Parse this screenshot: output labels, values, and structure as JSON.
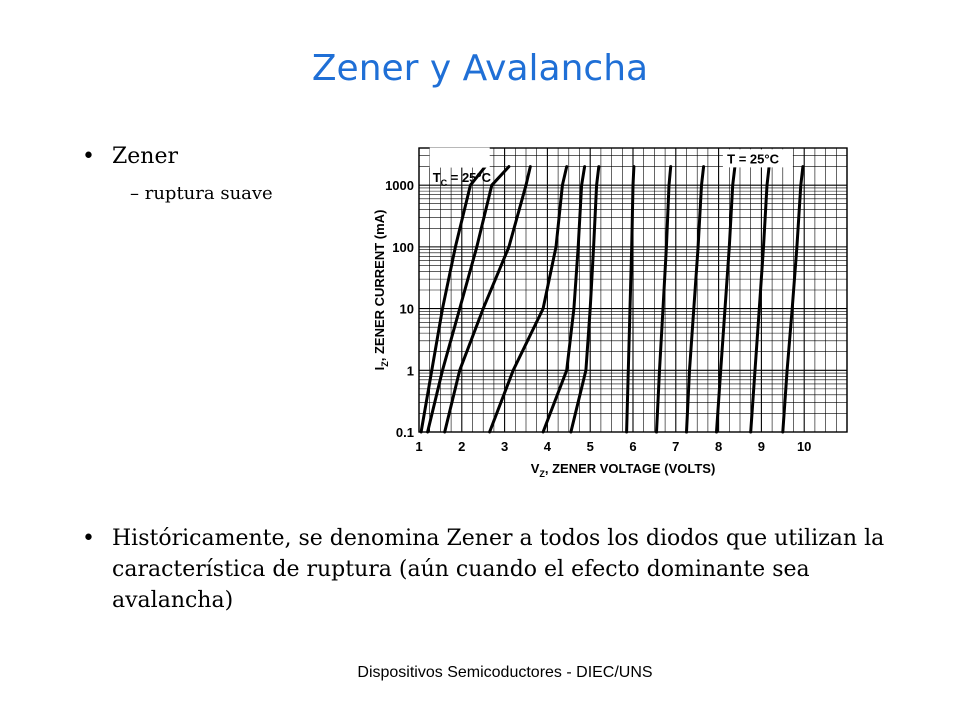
{
  "slide": {
    "title": "Zener y Avalancha",
    "bullet_char": "•",
    "bullet1": "Zener",
    "sub_bullet": "– ruptura suave",
    "bullet2": "Históricamente, se denomina Zener a todos los diodos que utilizan la característica de ruptura (aún cuando el efecto dominante sea avalancha)",
    "footer": "Dispositivos Semicoductores - DIEC/UNS"
  },
  "chart_data": {
    "type": "line",
    "x_label": "VZ, ZENER VOLTAGE (VOLTS)",
    "y_label": "IZ, ZENER CURRENT (mA)",
    "x_ticks": [
      "1",
      "2",
      "3",
      "4",
      "5",
      "6",
      "7",
      "8",
      "9",
      "10"
    ],
    "y_ticks": [
      "0.1",
      "1",
      "10",
      "100",
      "1000"
    ],
    "x_range": [
      1,
      11
    ],
    "y_scale": "log",
    "y_range": [
      0.1,
      4000
    ],
    "grid": true,
    "annotations": [
      "TC = 25°C",
      "T = 25°C"
    ],
    "series": [
      {
        "x": [
          1.05,
          1.3,
          1.55,
          1.85,
          2.2,
          2.55
        ],
        "y": [
          0.1,
          1,
          10,
          100,
          1000,
          2000
        ]
      },
      {
        "x": [
          1.2,
          1.55,
          1.95,
          2.35,
          2.7,
          3.1
        ],
        "y": [
          0.1,
          1,
          10,
          100,
          1000,
          2000
        ]
      },
      {
        "x": [
          1.6,
          1.95,
          2.5,
          3.1,
          3.5,
          3.6
        ],
        "y": [
          0.1,
          1,
          10,
          100,
          1000,
          2000
        ]
      },
      {
        "x": [
          2.65,
          3.2,
          3.9,
          4.2,
          4.35,
          4.45
        ],
        "y": [
          0.1,
          1,
          10,
          100,
          1000,
          2000
        ]
      },
      {
        "x": [
          3.9,
          4.45,
          4.62,
          4.72,
          4.8,
          4.87
        ],
        "y": [
          0.1,
          1,
          10,
          100,
          1000,
          2000
        ]
      },
      {
        "x": [
          4.55,
          4.9,
          5.0,
          5.08,
          5.15,
          5.2
        ],
        "y": [
          0.1,
          1,
          10,
          100,
          1000,
          2000
        ]
      },
      {
        "x": [
          5.85,
          5.89,
          5.93,
          5.97,
          6.0,
          6.02
        ],
        "y": [
          0.1,
          1,
          10,
          100,
          1000,
          2000
        ]
      },
      {
        "x": [
          6.55,
          6.62,
          6.7,
          6.78,
          6.84,
          6.88
        ],
        "y": [
          0.1,
          1,
          10,
          100,
          1000,
          2000
        ]
      },
      {
        "x": [
          7.25,
          7.32,
          7.42,
          7.52,
          7.6,
          7.65
        ],
        "y": [
          0.1,
          1,
          10,
          100,
          1000,
          2000
        ]
      },
      {
        "x": [
          7.95,
          8.05,
          8.15,
          8.25,
          8.33,
          8.38
        ],
        "y": [
          0.1,
          1,
          10,
          100,
          1000,
          2000
        ]
      },
      {
        "x": [
          8.75,
          8.85,
          8.95,
          9.05,
          9.13,
          9.18
        ],
        "y": [
          0.1,
          1,
          10,
          100,
          1000,
          2000
        ]
      },
      {
        "x": [
          9.5,
          9.6,
          9.72,
          9.83,
          9.92,
          9.97
        ],
        "y": [
          0.1,
          1,
          10,
          100,
          1000,
          2000
        ]
      }
    ]
  }
}
